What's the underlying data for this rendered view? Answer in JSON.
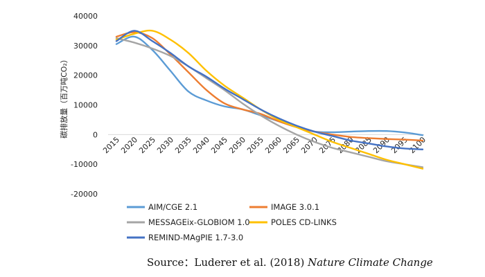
{
  "chart_data": {
    "type": "line",
    "ylabel": "碳排放量（百万吨CO₂）",
    "ylim": [
      -20000,
      40000
    ],
    "yticks": [
      40000,
      30000,
      20000,
      10000,
      0,
      -10000,
      -20000
    ],
    "ytick_labels": [
      "40000",
      "30000",
      "20000",
      "10000",
      "0",
      "-10000",
      "-20000"
    ],
    "x": [
      "2015",
      "2020",
      "2025",
      "2030",
      "2035",
      "2040",
      "2045",
      "2050",
      "2055",
      "2060",
      "2065",
      "2070",
      "2075",
      "2080",
      "2085",
      "2090",
      "2095",
      "2100"
    ],
    "series": [
      {
        "name": "AIM/CGE 2.1",
        "color": "#5B9BD5",
        "values": [
          30500,
          33000,
          28500,
          21500,
          14500,
          11500,
          9500,
          8500,
          6500,
          4500,
          2500,
          1000,
          800,
          1000,
          1200,
          1200,
          700,
          -200
        ]
      },
      {
        "name": "IMAGE 3.0.1",
        "color": "#ED7D31",
        "values": [
          33000,
          34500,
          32500,
          27000,
          21000,
          15000,
          10500,
          8500,
          7000,
          4500,
          2500,
          1000,
          0,
          -800,
          -1200,
          -1500,
          -1700,
          -2000
        ]
      },
      {
        "name": "MESSAGEix-GLOBIOM 1.0",
        "color": "#A5A5A5",
        "values": [
          32500,
          31000,
          29000,
          26500,
          23000,
          19000,
          15000,
          10500,
          6500,
          3000,
          0,
          -2500,
          -4500,
          -6000,
          -7500,
          -9000,
          -10000,
          -11000
        ]
      },
      {
        "name": "POLES CD-LINKS",
        "color": "#FFC000",
        "values": [
          32000,
          34000,
          35000,
          32000,
          27500,
          21500,
          16500,
          12500,
          8500,
          5000,
          2500,
          0,
          -2500,
          -4500,
          -6500,
          -8500,
          -10000,
          -11500
        ]
      },
      {
        "name": "REMIND-MAgPIE 1.7-3.0",
        "color": "#4472C4",
        "values": [
          31500,
          35000,
          31500,
          27500,
          23000,
          19500,
          15500,
          12000,
          8500,
          5500,
          3000,
          1000,
          -500,
          -2000,
          -3000,
          -4000,
          -4700,
          -5000
        ]
      }
    ],
    "grid": false,
    "legend": "bottom"
  },
  "source": {
    "prefix": "Source：Luderer et al. (2018) ",
    "journal": "Nature Climate Change"
  }
}
